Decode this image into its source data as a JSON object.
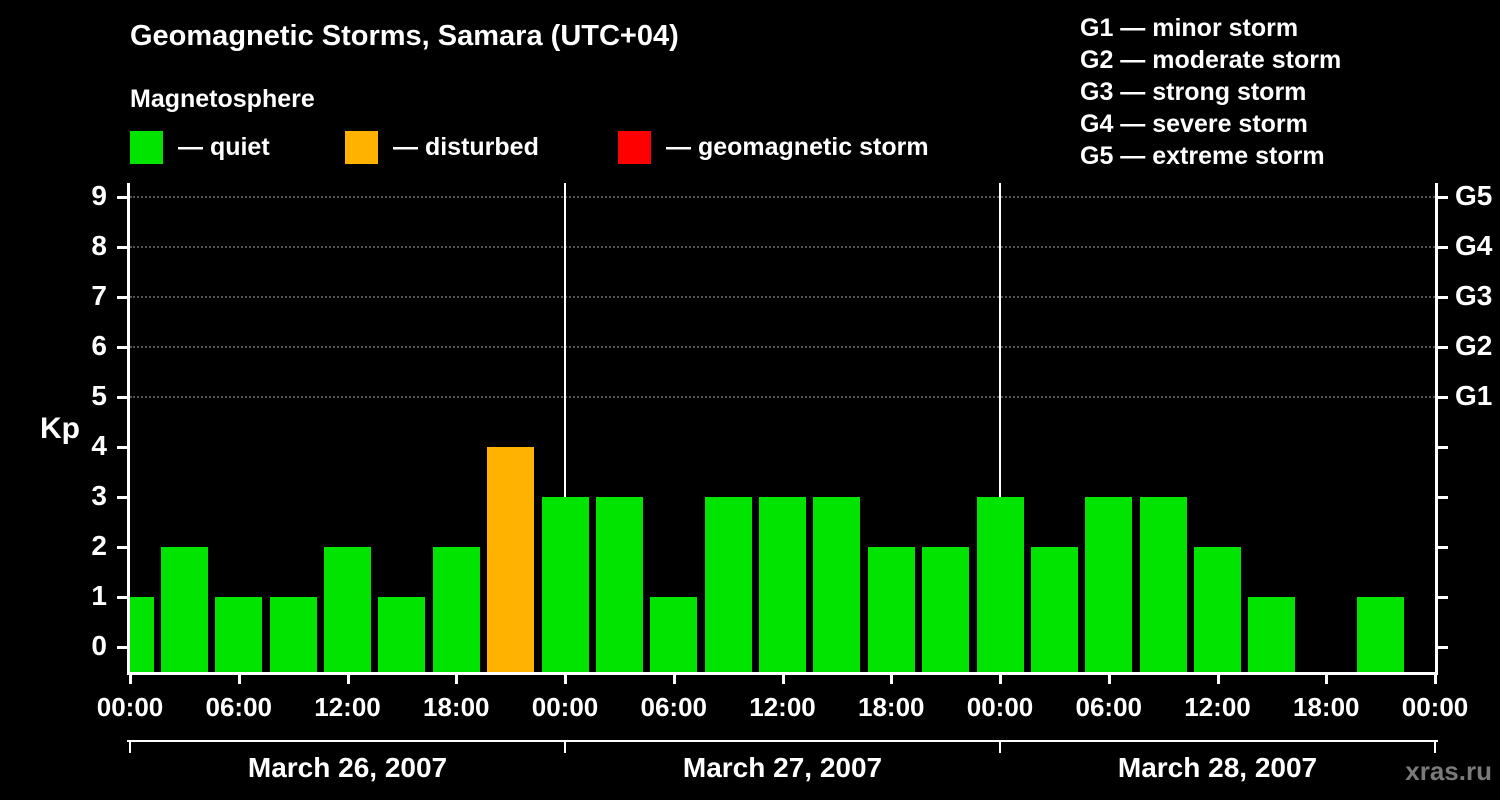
{
  "title": "Geomagnetic Storms, Samara (UTC+04)",
  "subtitle": "Magnetosphere",
  "legend": {
    "quiet": "— quiet",
    "disturbed": "— disturbed",
    "storm": "— geomagnetic storm"
  },
  "g_legend": [
    "G1 — minor storm",
    "G2 — moderate storm",
    "G3 — strong storm",
    "G4 — severe storm",
    "G5 — extreme storm"
  ],
  "watermark": "xras.ru",
  "chart_data": {
    "type": "bar",
    "title": "Geomagnetic Storms, Samara (UTC+04)",
    "ylabel": "Kp",
    "ylim": [
      0,
      9
    ],
    "y_ticks": [
      0,
      1,
      2,
      3,
      4,
      5,
      6,
      7,
      8,
      9
    ],
    "bar_interval_hours": 3,
    "x_tick_labels": [
      "00:00",
      "06:00",
      "12:00",
      "18:00",
      "00:00",
      "06:00",
      "12:00",
      "18:00",
      "00:00",
      "06:00",
      "12:00",
      "18:00",
      "00:00"
    ],
    "days": [
      {
        "date": "March 26, 2007",
        "values": [
          1,
          2,
          1,
          1,
          2,
          1,
          2,
          4
        ]
      },
      {
        "date": "March 27, 2007",
        "values": [
          3,
          3,
          1,
          3,
          3,
          3,
          2,
          2
        ]
      },
      {
        "date": "March 28, 2007",
        "values": [
          3,
          2,
          3,
          3,
          2,
          1,
          0,
          1
        ]
      }
    ],
    "g_levels": [
      {
        "kp": 5,
        "label": "G1"
      },
      {
        "kp": 6,
        "label": "G2"
      },
      {
        "kp": 7,
        "label": "G3"
      },
      {
        "kp": 8,
        "label": "G4"
      },
      {
        "kp": 9,
        "label": "G5"
      }
    ],
    "colors": {
      "quiet": "#00e400",
      "disturbed": "#ffb300",
      "storm": "#ff0000",
      "background": "#000000",
      "axis": "#ffffff",
      "grid": "#555555",
      "watermark": "#7a7a7a"
    },
    "color_rule": {
      "quiet_max": 3,
      "disturbed": 4,
      "storm_min": 5
    },
    "legend_position": "top",
    "grid": "dotted horizontal lines at Kp 5-9"
  }
}
